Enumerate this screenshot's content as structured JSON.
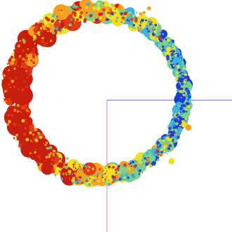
{
  "viewport": {
    "background": "#ffffff",
    "colormap": [
      "#1e3cd2",
      "#3ab4e0",
      "#78d28c",
      "#f0e024",
      "#f5a020",
      "#e23a14",
      "#c81e0e"
    ],
    "axes": {
      "x_color": "#6a6ad8",
      "y_color": "#e08a8a"
    }
  }
}
